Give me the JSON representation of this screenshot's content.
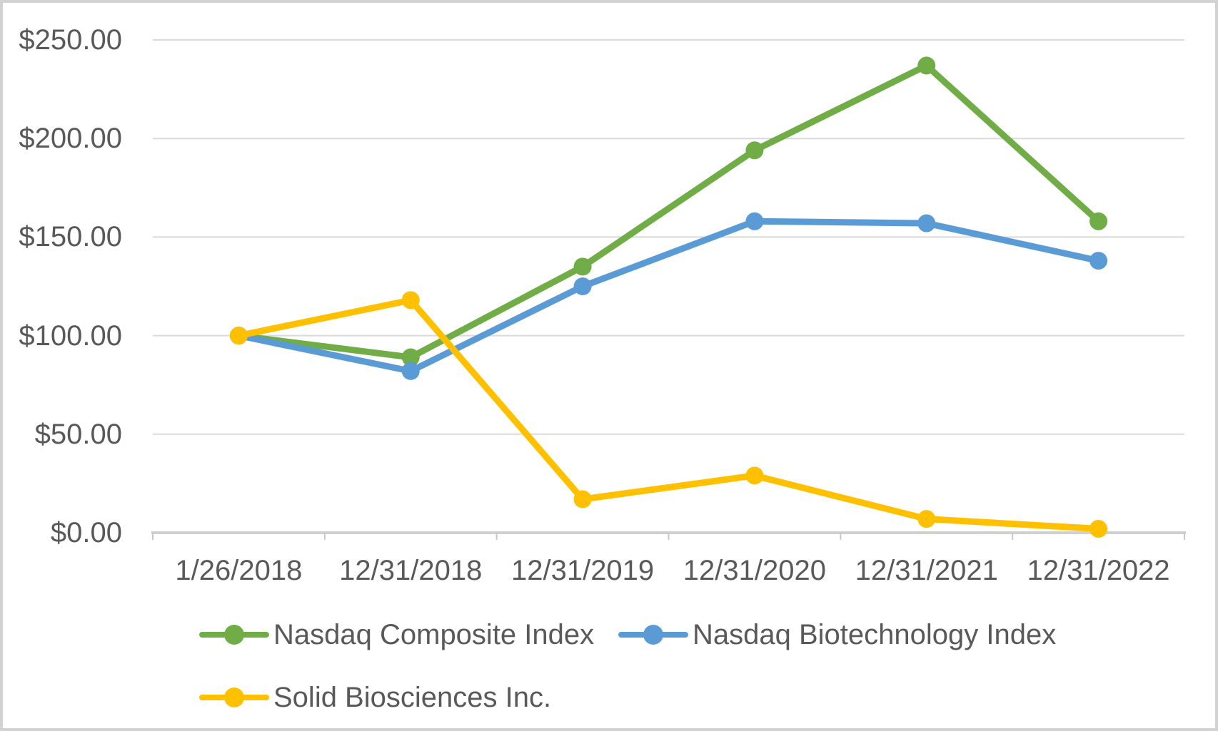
{
  "colors": {
    "gridline": "#d9d9d9",
    "axis": "#d0d0d0",
    "tick": "#c9c9c9",
    "text": "#595959",
    "frame_border": "#d2d2d2"
  },
  "chart_data": {
    "type": "line",
    "title": "",
    "xlabel": "",
    "ylabel": "",
    "ylim": [
      0,
      250
    ],
    "grid": true,
    "legend_position": "bottom",
    "x_labels": [
      "1/26/2018",
      "12/31/2018",
      "12/31/2019",
      "12/31/2020",
      "12/31/2021",
      "12/31/2022"
    ],
    "y_ticks": [
      {
        "label": "$0.00",
        "value": 0
      },
      {
        "label": "$50.00",
        "value": 50
      },
      {
        "label": "$100.00",
        "value": 100
      },
      {
        "label": "$150.00",
        "value": 150
      },
      {
        "label": "$200.00",
        "value": 200
      },
      {
        "label": "$250.00",
        "value": 250
      }
    ],
    "series": [
      {
        "name": "Nasdaq Composite Index",
        "color": "#70AD47",
        "values": [
          100,
          89,
          135,
          194,
          237,
          158
        ]
      },
      {
        "name": "Nasdaq Biotechnology Index",
        "color": "#5B9BD5",
        "values": [
          100,
          82,
          125,
          158,
          157,
          138
        ]
      },
      {
        "name": "Solid Biosciences Inc.",
        "color": "#FFC000",
        "values": [
          100,
          118,
          17,
          29,
          7,
          2
        ]
      }
    ]
  }
}
